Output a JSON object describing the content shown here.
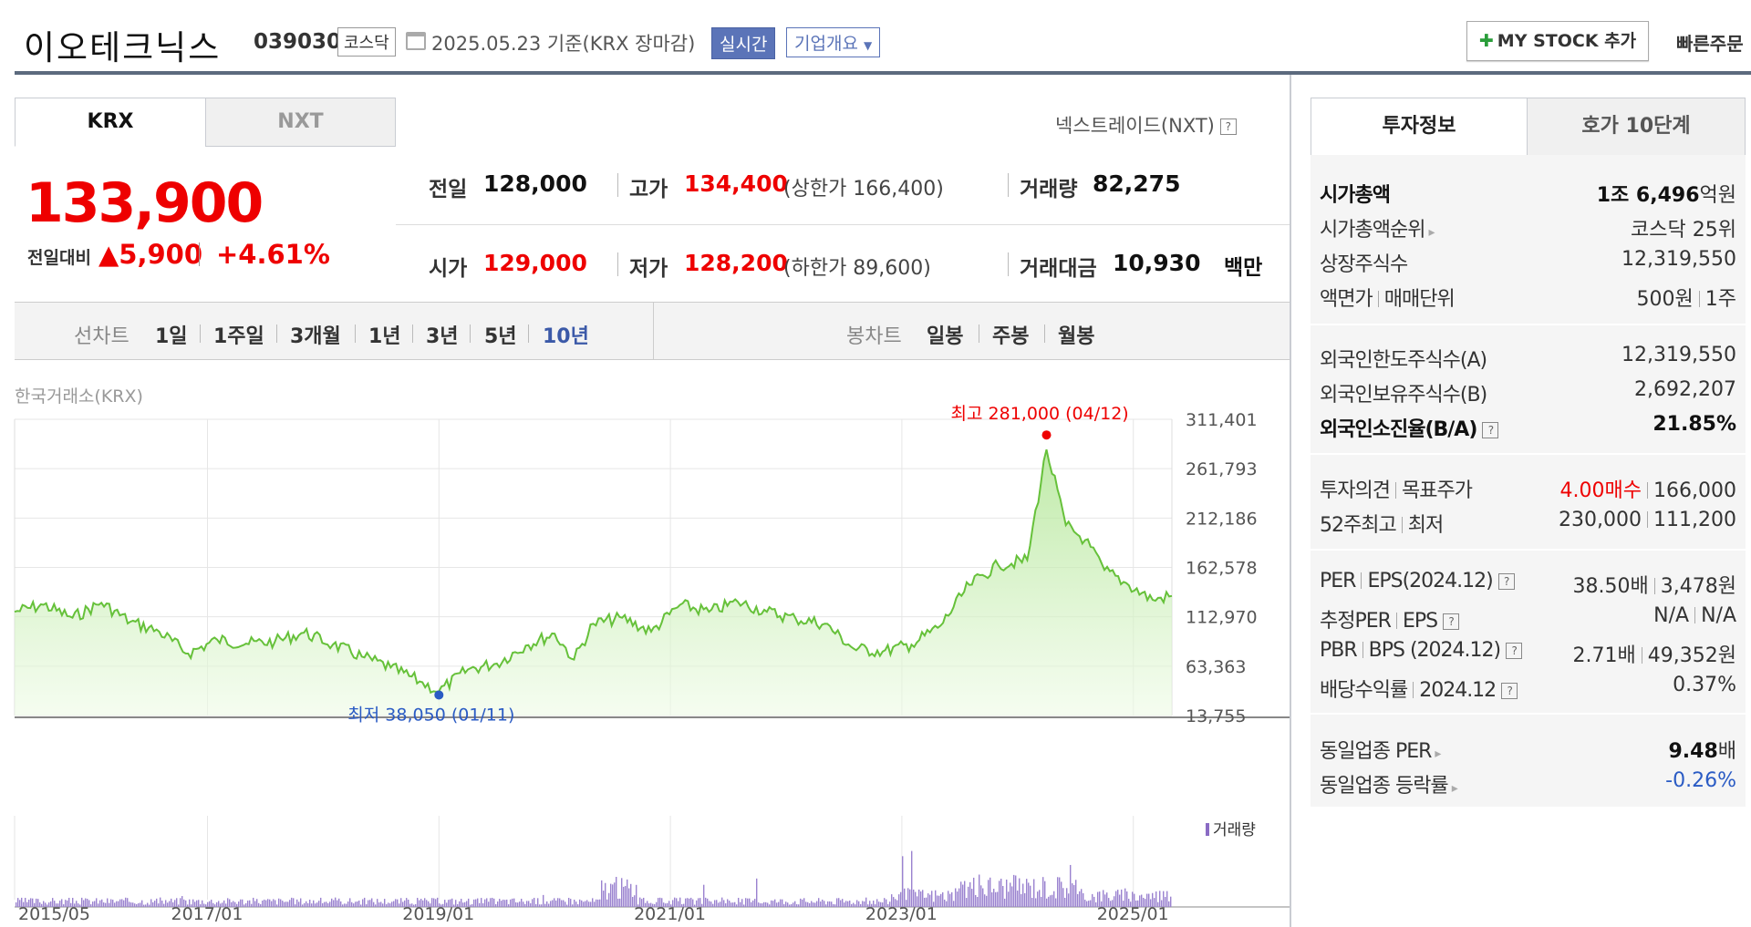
{
  "header": {
    "name": "이오테크닉스",
    "code": "039030",
    "market": "코스닥",
    "date": "2025.05.23  기준(KRX 장마감)",
    "realtime": "실시간",
    "company_info": "기업개요",
    "mystock": "MY STOCK 추가",
    "quick_order": "빠른주문"
  },
  "tabs": [
    "KRX",
    "NXT"
  ],
  "nxt_link": "넥스트레이드(NXT)",
  "quote": {
    "price": "133,900",
    "change_label": "전일대비",
    "change": "▲5,900",
    "change_pct": "+4.61%",
    "prev_label": "전일",
    "prev": "128,000",
    "high_label": "고가",
    "high": "134,400",
    "upper": "(상한가 166,400)",
    "volume_label": "거래량",
    "volume": "82,275",
    "open_label": "시가",
    "open": "129,000",
    "low_label": "저가",
    "low": "128,200",
    "lower": "(하한가 89,600)",
    "amount_label": "거래대금",
    "amount": "10,930",
    "amount_unit": "백만"
  },
  "periods": {
    "line_label": "선차트",
    "line": [
      "1일",
      "1주일",
      "3개월",
      "1년",
      "3년",
      "5년",
      "10년"
    ],
    "selected": "10년",
    "candle_label": "봉차트",
    "candle": [
      "일봉",
      "주봉",
      "월봉"
    ]
  },
  "chart_source": "한국거래소(KRX)",
  "chart_data": {
    "type": "area",
    "y_ticks": [
      "311,401",
      "261,793",
      "212,186",
      "162,578",
      "112,970",
      "63,363",
      "13,755"
    ],
    "ylim": [
      13755,
      311401
    ],
    "x_ticks": [
      "2015/05",
      "2017/01",
      "2019/01",
      "2021/01",
      "2023/01",
      "2025/01"
    ],
    "max_label": "최고 281,000 (04/12)",
    "min_label": "최저 38,050 (01/11)",
    "volume_legend": "거래량",
    "series": [
      {
        "x": [
          "2015/05",
          "2015/08",
          "2015/11",
          "2016/02",
          "2016/05",
          "2016/08",
          "2016/11",
          "2017/02",
          "2017/05",
          "2017/08",
          "2017/11",
          "2018/02",
          "2018/05",
          "2018/08",
          "2018/11",
          "2019/01",
          "2019/04",
          "2019/07",
          "2019/10",
          "2020/01",
          "2020/03",
          "2020/05",
          "2020/08",
          "2020/11",
          "2021/02",
          "2021/05",
          "2021/08",
          "2021/11",
          "2022/02",
          "2022/05",
          "2022/08",
          "2022/11",
          "2023/02",
          "2023/05",
          "2023/08",
          "2023/11",
          "2024/02",
          "2024/04",
          "2024/06",
          "2024/08",
          "2024/10",
          "2024/12",
          "2025/03",
          "2025/05"
        ],
        "values": [
          118000,
          125000,
          112000,
          127000,
          108000,
          98000,
          76000,
          90000,
          86000,
          88000,
          97000,
          85000,
          73000,
          62000,
          48000,
          38050,
          60000,
          66000,
          84000,
          96000,
          70000,
          106000,
          112000,
          98000,
          125000,
          118000,
          128000,
          118000,
          111000,
          106000,
          81000,
          78000,
          85000,
          104000,
          145000,
          165000,
          170000,
          281000,
          205000,
          190000,
          160000,
          148000,
          130000,
          133900
        ]
      }
    ]
  },
  "right": {
    "tabs": [
      "투자정보",
      "호가 10단계"
    ],
    "g1": [
      {
        "label": "시가총액",
        "value_b": "1조 6,496",
        "value_s": "억원",
        "bold": true
      },
      {
        "label": "시가총액순위",
        "value": "코스닥 25위",
        "arrow": true
      },
      {
        "label": "상장주식수",
        "value": "12,319,550"
      },
      {
        "label": "액면가",
        "label2": "매매단위",
        "value": "500원",
        "value2": "1주"
      }
    ],
    "g2": [
      {
        "label": "외국인한도주식수(A)",
        "value": "12,319,550"
      },
      {
        "label": "외국인보유주식수(B)",
        "value": "2,692,207"
      },
      {
        "label": "외국인소진율(B/A)",
        "value": "21.85%",
        "bold": true,
        "q": true
      }
    ],
    "g3": [
      {
        "label": "투자의견",
        "label2": "목표주가",
        "value_red": "4.00매수",
        "value2": "166,000"
      },
      {
        "label": "52주최고",
        "label2": "최저",
        "value": "230,000",
        "value2": "111,200"
      }
    ],
    "g4": [
      {
        "label": "PER",
        "label2": "EPS(2024.12)",
        "value": "38.50배",
        "value2": "3,478원"
      },
      {
        "label": "추정PER",
        "label2": "EPS",
        "value": "N/A",
        "value2": "N/A"
      },
      {
        "label": "PBR",
        "label2": "BPS (2024.12)",
        "value": "2.71배",
        "value2": "49,352원"
      },
      {
        "label": "배당수익률",
        "label2": "2024.12",
        "value": "0.37%"
      }
    ],
    "g5": [
      {
        "label": "동일업종 PER",
        "value_b": "9.48",
        "value_s": "배"
      },
      {
        "label": "동일업종 등락률",
        "value_blue": "-0.26%"
      }
    ]
  }
}
